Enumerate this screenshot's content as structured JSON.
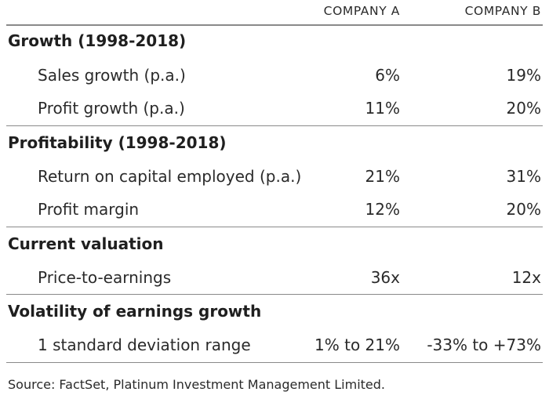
{
  "columns": {
    "a": "COMPANY A",
    "b": "COMPANY B"
  },
  "sections": [
    {
      "title": "Growth (1998-2018)",
      "rows": [
        {
          "label": "Sales growth (p.a.)",
          "a": "6%",
          "b": "19%"
        },
        {
          "label": "Profit growth (p.a.)",
          "a": "11%",
          "b": "20%"
        }
      ]
    },
    {
      "title": "Profitability (1998-2018)",
      "rows": [
        {
          "label": "Return on capital employed (p.a.)",
          "a": "21%",
          "b": "31%"
        },
        {
          "label": "Profit margin",
          "a": "12%",
          "b": "20%"
        }
      ]
    },
    {
      "title": "Current valuation",
      "rows": [
        {
          "label": "Price-to-earnings",
          "a": "36x",
          "b": "12x"
        }
      ]
    },
    {
      "title": "Volatility of earnings growth",
      "rows": [
        {
          "label": "1 standard deviation range",
          "a": "1% to 21%",
          "b": "-33% to +73%"
        }
      ]
    }
  ],
  "source": "Source: FactSet, Platinum Investment Management Limited."
}
